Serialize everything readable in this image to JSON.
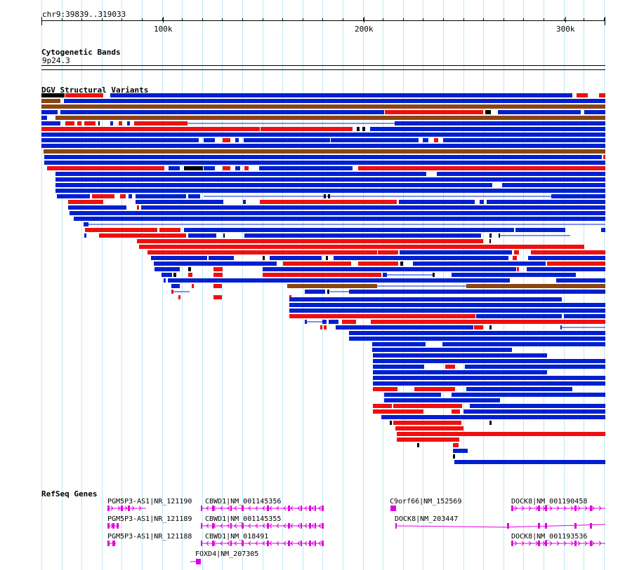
{
  "ruler": {
    "locus": "chr9:39839..319033",
    "ticks": [
      "100k",
      "200k",
      "300k"
    ]
  },
  "cytobands": {
    "title": "Cytogenetic Bands",
    "band": "9p24.3"
  },
  "dgv": {
    "title": "DGV Structural Variants",
    "colors": {
      "gain": "#0020d0",
      "loss": "#ee1010",
      "both": "#8b4513",
      "black": "#000000"
    }
  },
  "refseq": {
    "title": "RefSeq Genes",
    "color": "#e000e0",
    "genes": [
      "PGM5P3-AS1|NR_121190",
      "CBWD1|NM_001145356",
      "C9orf66|NM_152569",
      "DOCK8|NM_001190458",
      "PGM5P3-AS1|NR_121189",
      "CBWD1|NM_001145355",
      "DOCK8|NM_203447",
      "PGM5P3-AS1|NR_121188",
      "CBWD1|NM_018491",
      "DOCK8|NM_001193536",
      "FOXD4|NM_207305"
    ]
  }
}
